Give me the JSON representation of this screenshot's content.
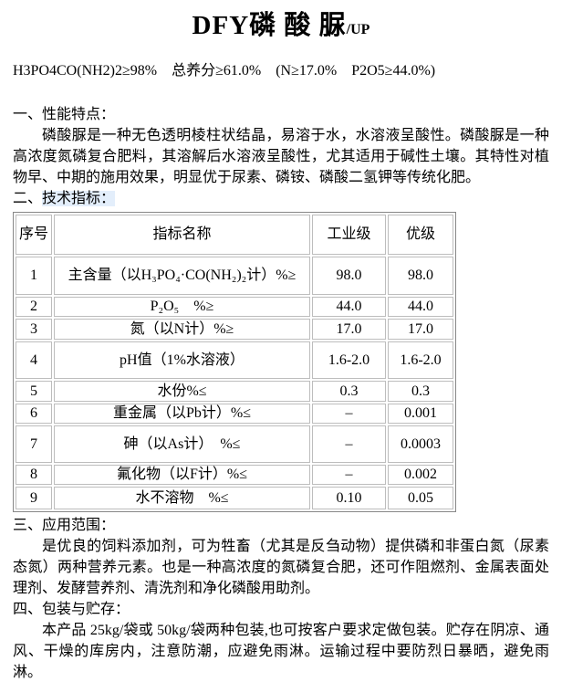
{
  "title": {
    "main": "DFY磷 酸 脲",
    "suffix": "/UP"
  },
  "formula_line": "H3PO4CO(NH2)2≥98%　总养分≥61.0%　(N≥17.0%　P2O5≥44.0%)",
  "sections": {
    "s1": {
      "heading": "一、性能特点：",
      "body": "磷酸脲是一种无色透明棱柱状结晶，易溶于水，水溶液呈酸性。磷酸脲是一种高浓度氮磷复合肥料，其溶解后水溶液呈酸性，尤其适用于碱性土壤。其特性对植物早、中期的施用效果，明显优于尿素、磷铵、磷酸二氢钾等传统化肥。"
    },
    "s2": {
      "prefix": "二、",
      "label": "技术指标："
    },
    "s3": {
      "heading": "三、应用范围：",
      "body": "是优良的饲料添加剂，可为牲畜（尤其是反刍动物）提供磷和非蛋白氮（尿素态氮）两种营养元素。也是一种高浓度的氮磷复合肥，还可作阻燃剂、金属表面处理剂、发酵营养剂、清洗剂和净化磷酸用助剂。"
    },
    "s4": {
      "heading": "四、包装与贮存：",
      "body": "本产品 25kg/袋或 50kg/袋两种包装,也可按客户要求定做包装。贮存在阴凉、通风、干燥的库房内，注意防潮，应避免雨淋。运输过程中要防烈日暴晒，避免雨淋。"
    }
  },
  "table": {
    "headers": [
      "序号",
      "指标名称",
      "工业级",
      "优级"
    ],
    "rows": [
      [
        "1",
        "主含量（以H₃PO₄·CO(NH₂)₂计）%≥",
        "98.0",
        "98.0"
      ],
      [
        "2",
        "P₂O₅　%≥",
        "44.0",
        "44.0"
      ],
      [
        "3",
        "氮（以N计）%≥",
        "17.0",
        "17.0"
      ],
      [
        "4",
        "pH值（1%水溶液）",
        "1.6-2.0",
        "1.6-2.0"
      ],
      [
        "5",
        "水份%≤",
        "0.3",
        "0.3"
      ],
      [
        "6",
        "重金属（以Pb计）%≤",
        "–",
        "0.001"
      ],
      [
        "7",
        "砷（以As计）　%≤",
        "–",
        "0.0003"
      ],
      [
        "8",
        "氟化物（以F计）%≤",
        "–",
        "0.002"
      ],
      [
        "9",
        "水不溶物　%≤",
        "0.10",
        "0.05"
      ]
    ]
  },
  "colors": {
    "highlight": "#e3eefb",
    "table_outer_border": "#878787",
    "table_cell_border": "#bdbdbd",
    "text": "#000000",
    "background": "#ffffff"
  }
}
